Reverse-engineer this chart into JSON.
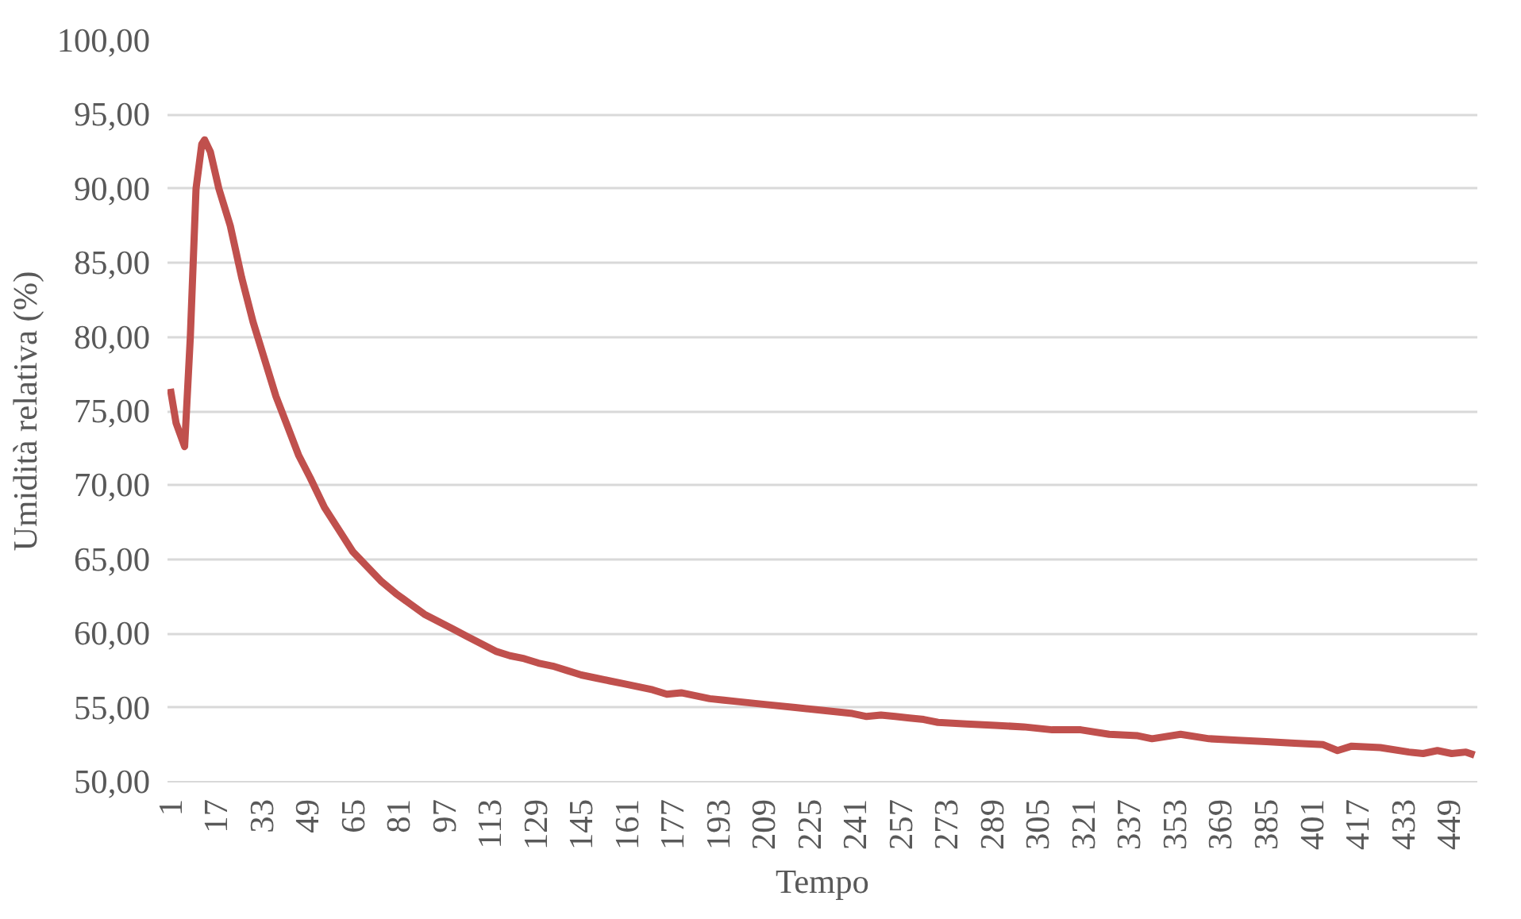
{
  "chart_data": {
    "type": "line",
    "xlabel": "Tempo",
    "ylabel": "Umidità relativa (%)",
    "x": [
      1,
      3,
      6,
      8,
      10,
      12,
      13,
      15,
      18,
      22,
      26,
      30,
      34,
      38,
      42,
      46,
      50,
      55,
      60,
      65,
      70,
      75,
      80,
      85,
      90,
      95,
      100,
      105,
      110,
      115,
      120,
      125,
      130,
      135,
      140,
      145,
      150,
      155,
      160,
      165,
      170,
      175,
      180,
      185,
      190,
      195,
      200,
      210,
      220,
      230,
      240,
      245,
      250,
      255,
      260,
      265,
      270,
      280,
      290,
      300,
      310,
      320,
      330,
      340,
      345,
      355,
      365,
      375,
      385,
      395,
      405,
      410,
      415,
      425,
      435,
      440,
      445,
      450,
      455,
      458
    ],
    "series": [
      {
        "color": "#c0504d",
        "values": [
          76.5,
          74.2,
          72.6,
          80,
          90,
          93.0,
          93.3,
          92.5,
          90,
          87.5,
          84,
          81,
          78.5,
          76,
          74,
          72,
          70.5,
          68.5,
          67,
          65.5,
          64.5,
          63.5,
          62.7,
          62,
          61.3,
          60.8,
          60.3,
          59.8,
          59.3,
          58.8,
          58.5,
          58.3,
          58,
          57.8,
          57.5,
          57.2,
          57,
          56.8,
          56.6,
          56.4,
          56.2,
          55.9,
          56,
          55.8,
          55.6,
          55.5,
          55.4,
          55.2,
          55,
          54.8,
          54.6,
          54.4,
          54.5,
          54.4,
          54.3,
          54.2,
          54.0,
          53.9,
          53.8,
          53.7,
          53.5,
          53.5,
          53.2,
          53.1,
          52.9,
          53.2,
          52.9,
          52.8,
          52.7,
          52.6,
          52.5,
          52.1,
          52.4,
          52.3,
          52.0,
          51.9,
          52.1,
          51.9,
          52.0,
          51.8
        ]
      }
    ],
    "xlim": [
      0,
      459
    ],
    "xticks": [
      1,
      17,
      33,
      49,
      65,
      81,
      97,
      113,
      129,
      145,
      161,
      177,
      193,
      209,
      225,
      241,
      257,
      273,
      289,
      305,
      321,
      337,
      353,
      369,
      385,
      401,
      417,
      433,
      449
    ],
    "ylim": [
      50,
      100
    ],
    "yticks": [
      {
        "value": 50,
        "label": "50,00"
      },
      {
        "value": 55,
        "label": "55,00"
      },
      {
        "value": 60,
        "label": "60,00"
      },
      {
        "value": 65,
        "label": "65,00"
      },
      {
        "value": 70,
        "label": "70,00"
      },
      {
        "value": 75,
        "label": "75,00"
      },
      {
        "value": 80,
        "label": "80,00"
      },
      {
        "value": 85,
        "label": "85,00"
      },
      {
        "value": 90,
        "label": "90,00"
      },
      {
        "value": 95,
        "label": "95,00"
      },
      {
        "value": 100,
        "label": "100,00"
      }
    ],
    "grid": "y",
    "marker": "none",
    "line_style": "solid"
  }
}
